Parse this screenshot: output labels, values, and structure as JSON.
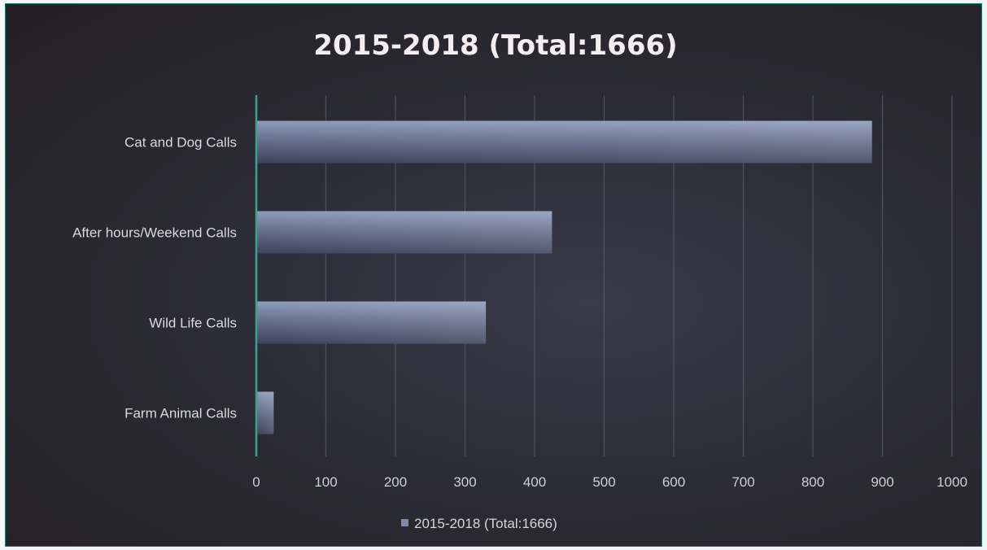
{
  "chart_data": {
    "type": "bar",
    "orientation": "horizontal",
    "title": "2015-2018 (Total:1666)",
    "categories": [
      "Cat and Dog Calls",
      "After hours/Weekend Calls",
      "Wild Life Calls",
      "Farm Animal Calls"
    ],
    "series": [
      {
        "name": "2015-2018 (Total:1666)",
        "values": [
          885,
          425,
          330,
          25
        ]
      }
    ],
    "xlim": [
      0,
      1000
    ],
    "xticks": [
      0,
      100,
      200,
      300,
      400,
      500,
      600,
      700,
      800,
      900,
      1000
    ],
    "grid": true,
    "legend_position": "bottom",
    "colors": {
      "bar_light": "#7c8aab",
      "bar_dark": "#48506b",
      "axis": "#3fa08a",
      "grid": "#5a5a66"
    }
  }
}
